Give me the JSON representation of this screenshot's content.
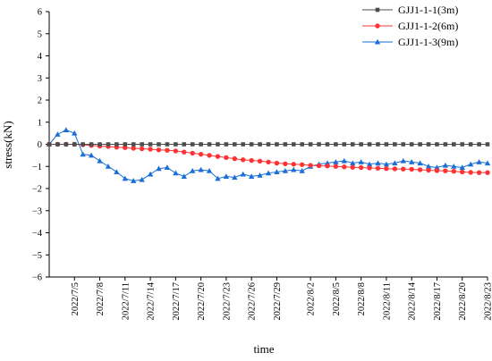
{
  "chart_data": {
    "type": "line",
    "title": "",
    "xlabel": "time",
    "ylabel": "stress(kN)",
    "ylim": [
      -6,
      6
    ],
    "yticks": [
      -6,
      -5,
      -4,
      -3,
      -2,
      -1,
      0,
      1,
      2,
      3,
      4,
      5,
      6
    ],
    "x_range": [
      "2022/7/2",
      "2022/8/23"
    ],
    "x_ticks": [
      "2022/7/5",
      "2022/7/8",
      "2022/7/11",
      "2022/7/14",
      "2022/7/17",
      "2022/7/20",
      "2022/7/23",
      "2022/7/26",
      "2022/7/29",
      "2022/8/2",
      "2022/8/5",
      "2022/8/8",
      "2022/8/11",
      "2022/8/14",
      "2022/8/17",
      "2022/8/20",
      "2022/8/23"
    ],
    "legend_position": "top-right",
    "grid": false,
    "x": [
      "2022/7/2",
      "2022/7/3",
      "2022/7/4",
      "2022/7/5",
      "2022/7/6",
      "2022/7/7",
      "2022/7/8",
      "2022/7/9",
      "2022/7/10",
      "2022/7/11",
      "2022/7/12",
      "2022/7/13",
      "2022/7/14",
      "2022/7/15",
      "2022/7/16",
      "2022/7/17",
      "2022/7/18",
      "2022/7/19",
      "2022/7/20",
      "2022/7/21",
      "2022/7/22",
      "2022/7/23",
      "2022/7/24",
      "2022/7/25",
      "2022/7/26",
      "2022/7/27",
      "2022/7/28",
      "2022/7/29",
      "2022/7/30",
      "2022/7/31",
      "2022/8/1",
      "2022/8/2",
      "2022/8/3",
      "2022/8/4",
      "2022/8/5",
      "2022/8/6",
      "2022/8/7",
      "2022/8/8",
      "2022/8/9",
      "2022/8/10",
      "2022/8/11",
      "2022/8/12",
      "2022/8/13",
      "2022/8/14",
      "2022/8/15",
      "2022/8/16",
      "2022/8/17",
      "2022/8/18",
      "2022/8/19",
      "2022/8/20",
      "2022/8/21",
      "2022/8/22",
      "2022/8/23"
    ],
    "series": [
      {
        "name": "GJJ1-1-1(3m)",
        "color": "#4d4d4d",
        "marker": "square",
        "values": [
          0,
          0,
          0,
          0,
          0,
          0,
          0,
          0,
          0,
          0,
          0,
          0,
          0,
          0,
          0,
          0,
          0,
          0,
          0,
          0,
          0,
          0,
          0,
          0,
          0,
          0,
          0,
          0,
          0,
          0,
          0,
          0,
          0,
          0,
          0,
          0,
          0,
          0,
          0,
          0,
          0,
          0,
          0,
          0,
          0,
          0,
          0,
          0,
          0,
          0,
          0,
          0,
          0
        ]
      },
      {
        "name": "GJJ1-1-2(6m)",
        "color": "#ff3333",
        "marker": "circle",
        "values": [
          0,
          0,
          0,
          0,
          -0.02,
          -0.05,
          -0.08,
          -0.1,
          -0.13,
          -0.15,
          -0.18,
          -0.2,
          -0.22,
          -0.25,
          -0.27,
          -0.3,
          -0.35,
          -0.4,
          -0.45,
          -0.5,
          -0.55,
          -0.6,
          -0.65,
          -0.7,
          -0.73,
          -0.76,
          -0.8,
          -0.85,
          -0.88,
          -0.9,
          -0.92,
          -0.95,
          -0.97,
          -0.98,
          -1.0,
          -1.02,
          -1.04,
          -1.05,
          -1.07,
          -1.08,
          -1.1,
          -1.11,
          -1.12,
          -1.13,
          -1.15,
          -1.17,
          -1.19,
          -1.2,
          -1.22,
          -1.25,
          -1.27,
          -1.28,
          -1.28
        ]
      },
      {
        "name": "GJJ1-1-3(9m)",
        "color": "#1a6fd6",
        "marker": "triangle",
        "values": [
          0,
          0.45,
          0.65,
          0.5,
          -0.45,
          -0.5,
          -0.75,
          -1.0,
          -1.25,
          -1.55,
          -1.65,
          -1.6,
          -1.35,
          -1.1,
          -1.05,
          -1.3,
          -1.45,
          -1.2,
          -1.15,
          -1.2,
          -1.55,
          -1.45,
          -1.5,
          -1.35,
          -1.45,
          -1.4,
          -1.3,
          -1.25,
          -1.2,
          -1.15,
          -1.2,
          -1.0,
          -0.9,
          -0.85,
          -0.8,
          -0.75,
          -0.85,
          -0.8,
          -0.9,
          -0.85,
          -0.9,
          -0.85,
          -0.75,
          -0.8,
          -0.85,
          -1.0,
          -1.05,
          -0.95,
          -1.0,
          -1.05,
          -0.9,
          -0.8,
          -0.85
        ]
      }
    ]
  }
}
